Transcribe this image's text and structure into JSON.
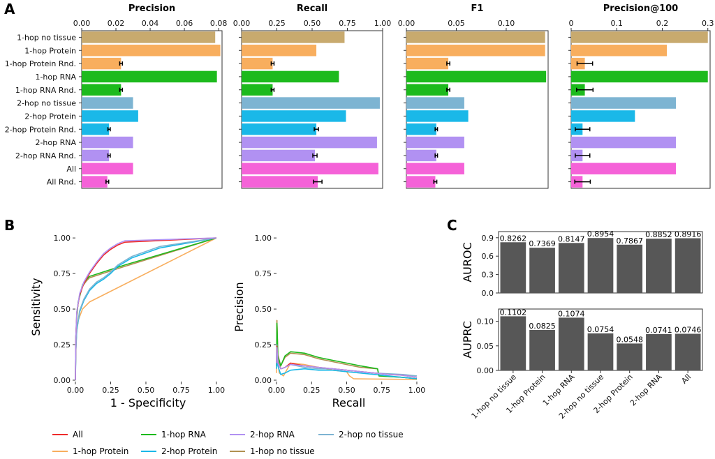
{
  "panel_labels": {
    "a": "A",
    "b": "B",
    "c": "C"
  },
  "colors": {
    "1-hop no tissue": "#C8AA6E",
    "1-hop Protein": "#F8AE5E",
    "1-hop Protein Rnd.": "#F8AE5E",
    "1-hop RNA": "#1DBA1D",
    "1-hop RNA Rnd.": "#1DBA1D",
    "2-hop no tissue": "#7DB4D2",
    "2-hop Protein": "#1AB8E8",
    "2-hop Protein Rnd.": "#1AB8E8",
    "2-hop RNA": "#B191F2",
    "2-hop RNA Rnd.": "#B191F2",
    "All": "#F562D8",
    "All Rnd.": "#F562D8",
    "grey_bar": "#575757"
  },
  "chart_data": [
    {
      "id": "A",
      "type": "bar",
      "orientation": "horizontal",
      "categories": [
        "1-hop no tissue",
        "1-hop Protein",
        "1-hop Protein Rnd.",
        "1-hop RNA",
        "1-hop RNA Rnd.",
        "2-hop no tissue",
        "2-hop Protein",
        "2-hop Protein Rnd.",
        "2-hop RNA",
        "2-hop RNA Rnd.",
        "All",
        "All Rnd."
      ],
      "facets": [
        {
          "title": "Precision",
          "xlim": [
            0,
            0.082
          ],
          "ticks": [
            0,
            0.02,
            0.04,
            0.06,
            0.08
          ],
          "tick_labels": [
            "0.00",
            "0.02",
            "0.04",
            "0.06",
            "0.08"
          ],
          "values": [
            0.078,
            0.081,
            0.023,
            0.079,
            0.023,
            0.03,
            0.033,
            0.016,
            0.03,
            0.016,
            0.03,
            0.015
          ],
          "errors": [
            0,
            0,
            0.0008,
            0,
            0.0008,
            0,
            0,
            0.0007,
            0,
            0.0007,
            0,
            0.0008
          ]
        },
        {
          "title": "Recall",
          "xlim": [
            0,
            1.0
          ],
          "ticks": [
            0,
            0.25,
            0.5,
            0.75,
            1.0
          ],
          "tick_labels": [
            "0.00",
            "0.25",
            "0.50",
            "0.75",
            "1.00"
          ],
          "values": [
            0.73,
            0.53,
            0.22,
            0.69,
            0.22,
            0.98,
            0.74,
            0.53,
            0.96,
            0.52,
            0.97,
            0.54
          ],
          "errors": [
            0,
            0,
            0.01,
            0,
            0.01,
            0,
            0,
            0.015,
            0,
            0.015,
            0,
            0.03
          ]
        },
        {
          "title": "F1",
          "xlim": [
            0,
            0.142
          ],
          "ticks": [
            0,
            0.05,
            0.1
          ],
          "tick_labels": [
            "0.00",
            "0.05",
            "0.10"
          ],
          "values": [
            0.139,
            0.139,
            0.042,
            0.14,
            0.042,
            0.058,
            0.062,
            0.03,
            0.058,
            0.03,
            0.058,
            0.029
          ],
          "errors": [
            0,
            0,
            0.0015,
            0,
            0.0015,
            0,
            0,
            0.0012,
            0,
            0.0012,
            0,
            0.0015
          ]
        },
        {
          "title": "Precision@100",
          "xlim": [
            0,
            0.305
          ],
          "ticks": [
            0,
            0.1,
            0.2,
            0.3
          ],
          "tick_labels": [
            "0",
            "0.1",
            "0.2",
            "0.3"
          ],
          "values": [
            0.3,
            0.21,
            0.03,
            0.3,
            0.03,
            0.23,
            0.14,
            0.025,
            0.23,
            0.025,
            0.23,
            0.025
          ],
          "errors": [
            0,
            0,
            0.017,
            0,
            0.018,
            0,
            0,
            0.016,
            0,
            0.016,
            0,
            0.017
          ]
        }
      ]
    },
    {
      "id": "B-roc",
      "type": "line",
      "title": "",
      "xlabel": "1 - Specificity",
      "ylabel": "Sensitivity",
      "xlim": [
        0,
        1.03
      ],
      "ylim": [
        0,
        1.03
      ],
      "ticks": [
        0,
        0.25,
        0.5,
        0.75,
        1.0
      ],
      "tick_labels": [
        "0.00",
        "0.25",
        "0.50",
        "0.75",
        "1.00"
      ],
      "series": [
        {
          "name": "1-hop Protein",
          "x": [
            0,
            0.003,
            0.01,
            0.02,
            0.05,
            0.1,
            1.0
          ],
          "y": [
            0,
            0.25,
            0.35,
            0.42,
            0.5,
            0.55,
            1.0
          ]
        },
        {
          "name": "1-hop no tissue",
          "x": [
            0,
            0.003,
            0.01,
            0.02,
            0.05,
            0.08,
            0.1,
            0.35,
            1.0
          ],
          "y": [
            0,
            0.3,
            0.45,
            0.55,
            0.66,
            0.7,
            0.72,
            0.8,
            1.0
          ]
        },
        {
          "name": "1-hop RNA",
          "x": [
            0,
            0.003,
            0.01,
            0.02,
            0.05,
            0.08,
            0.1,
            0.35,
            1.0
          ],
          "y": [
            0,
            0.3,
            0.45,
            0.55,
            0.67,
            0.71,
            0.73,
            0.81,
            1.0
          ]
        },
        {
          "name": "2-hop Protein",
          "x": [
            0,
            0.003,
            0.01,
            0.03,
            0.06,
            0.1,
            0.15,
            0.2,
            0.25,
            0.3,
            0.4,
            0.6,
            1.0
          ],
          "y": [
            0,
            0.2,
            0.35,
            0.48,
            0.56,
            0.63,
            0.68,
            0.71,
            0.75,
            0.8,
            0.86,
            0.93,
            1.0
          ]
        },
        {
          "name": "2-hop no tissue",
          "x": [
            0,
            0.003,
            0.01,
            0.03,
            0.06,
            0.1,
            0.15,
            0.2,
            0.25,
            0.3,
            0.4,
            0.6,
            1.0
          ],
          "y": [
            0,
            0.21,
            0.36,
            0.49,
            0.57,
            0.64,
            0.69,
            0.72,
            0.76,
            0.81,
            0.87,
            0.94,
            1.0
          ]
        },
        {
          "name": "All",
          "x": [
            0,
            0.003,
            0.01,
            0.03,
            0.06,
            0.1,
            0.15,
            0.2,
            0.25,
            0.3,
            0.35,
            1.0
          ],
          "y": [
            0,
            0.3,
            0.48,
            0.6,
            0.68,
            0.75,
            0.82,
            0.88,
            0.92,
            0.95,
            0.97,
            1.0
          ]
        },
        {
          "name": "2-hop RNA",
          "x": [
            0,
            0.003,
            0.01,
            0.03,
            0.06,
            0.1,
            0.15,
            0.2,
            0.25,
            0.3,
            0.35,
            1.0
          ],
          "y": [
            0,
            0.3,
            0.48,
            0.61,
            0.69,
            0.76,
            0.83,
            0.89,
            0.93,
            0.96,
            0.98,
            1.0
          ]
        }
      ]
    },
    {
      "id": "B-pr",
      "type": "line",
      "title": "",
      "xlabel": "Recall",
      "ylabel": "Precision",
      "xlim": [
        0,
        1.03
      ],
      "ylim": [
        0,
        1.03
      ],
      "ticks": [
        0,
        0.25,
        0.5,
        0.75,
        1.0
      ],
      "tick_labels": [
        "0.00",
        "0.25",
        "0.50",
        "0.75",
        "1.00"
      ],
      "series": [
        {
          "name": "1-hop Protein",
          "x": [
            0,
            0.003,
            0.01,
            0.02,
            0.05,
            0.1,
            0.2,
            0.3,
            0.4,
            0.5,
            0.52,
            0.55,
            1.0
          ],
          "y": [
            0.05,
            0.42,
            0.12,
            0.05,
            0.03,
            0.12,
            0.11,
            0.09,
            0.07,
            0.06,
            0.03,
            0.01,
            0.005
          ]
        },
        {
          "name": "1-hop no tissue",
          "x": [
            0,
            0.003,
            0.01,
            0.03,
            0.06,
            0.1,
            0.2,
            0.3,
            0.4,
            0.5,
            0.6,
            0.72,
            0.73,
            0.9,
            1.0
          ],
          "y": [
            0.1,
            0.42,
            0.18,
            0.1,
            0.16,
            0.19,
            0.18,
            0.15,
            0.13,
            0.11,
            0.09,
            0.08,
            0.03,
            0.02,
            0.01
          ]
        },
        {
          "name": "1-hop RNA",
          "x": [
            0,
            0.003,
            0.01,
            0.03,
            0.06,
            0.1,
            0.2,
            0.3,
            0.4,
            0.5,
            0.6,
            0.72,
            0.73,
            0.9,
            1.0
          ],
          "y": [
            0.1,
            0.4,
            0.17,
            0.1,
            0.17,
            0.2,
            0.19,
            0.16,
            0.14,
            0.12,
            0.1,
            0.08,
            0.03,
            0.02,
            0.01
          ]
        },
        {
          "name": "2-hop Protein",
          "x": [
            0,
            0.003,
            0.01,
            0.03,
            0.06,
            0.1,
            0.2,
            0.3,
            0.4,
            0.5,
            0.6,
            0.7,
            0.8,
            0.9,
            1.0
          ],
          "y": [
            0.08,
            0.2,
            0.1,
            0.04,
            0.05,
            0.07,
            0.08,
            0.07,
            0.07,
            0.06,
            0.05,
            0.04,
            0.03,
            0.02,
            0.01
          ]
        },
        {
          "name": "2-hop no tissue",
          "x": [
            0,
            0.003,
            0.01,
            0.03,
            0.06,
            0.1,
            0.15,
            0.2,
            0.3,
            0.4,
            0.5,
            0.6,
            0.7,
            0.8,
            0.9,
            1.0
          ],
          "y": [
            0.15,
            0.25,
            0.14,
            0.08,
            0.09,
            0.11,
            0.1,
            0.09,
            0.08,
            0.08,
            0.07,
            0.06,
            0.05,
            0.045,
            0.04,
            0.03
          ]
        },
        {
          "name": "All",
          "x": [
            0,
            0.003,
            0.01,
            0.03,
            0.06,
            0.1,
            0.15,
            0.2,
            0.3,
            0.4,
            0.5,
            0.6,
            0.7,
            0.8,
            0.9,
            1.0
          ],
          "y": [
            0.12,
            0.24,
            0.13,
            0.08,
            0.09,
            0.12,
            0.11,
            0.1,
            0.09,
            0.08,
            0.07,
            0.06,
            0.05,
            0.04,
            0.035,
            0.02
          ]
        },
        {
          "name": "2-hop RNA",
          "x": [
            0,
            0.003,
            0.01,
            0.03,
            0.06,
            0.1,
            0.15,
            0.2,
            0.3,
            0.4,
            0.5,
            0.6,
            0.7,
            0.8,
            0.9,
            1.0
          ],
          "y": [
            0.12,
            0.23,
            0.12,
            0.08,
            0.09,
            0.11,
            0.105,
            0.1,
            0.09,
            0.08,
            0.07,
            0.06,
            0.05,
            0.04,
            0.035,
            0.02
          ]
        }
      ]
    },
    {
      "id": "C-auroc",
      "type": "bar",
      "ylabel": "AUROC",
      "ylim": [
        0,
        1.0
      ],
      "ticks": [
        0,
        0.3,
        0.6,
        0.9
      ],
      "tick_labels": [
        "0.0",
        "0.3",
        "0.6",
        "0.9"
      ],
      "categories": [
        "1-hop no tissue",
        "1-hop Protein",
        "1-hop RNA",
        "2-hop no tissue",
        "2-hop Protein",
        "2-hop RNA",
        "All"
      ],
      "values": [
        0.8262,
        0.7369,
        0.8147,
        0.8954,
        0.7867,
        0.8852,
        0.8916
      ],
      "labels": [
        "0.8262",
        "0.7369",
        "0.8147",
        "0.8954",
        "0.7867",
        "0.8852",
        "0.8916"
      ]
    },
    {
      "id": "C-auprc",
      "type": "bar",
      "ylabel": "AUPRC",
      "ylim": [
        0,
        0.125
      ],
      "ticks": [
        0,
        0.05,
        0.1
      ],
      "tick_labels": [
        "0.00",
        "0.05",
        "0.10"
      ],
      "categories": [
        "1-hop no tissue",
        "1-hop Protein",
        "1-hop RNA",
        "2-hop no tissue",
        "2-hop Protein",
        "2-hop RNA",
        "All"
      ],
      "values": [
        0.1102,
        0.0825,
        0.1074,
        0.0754,
        0.0548,
        0.0741,
        0.0746
      ],
      "labels": [
        "0.1102",
        "0.0825",
        "0.1074",
        "0.0754",
        "0.0548",
        "0.0741",
        "0.0746"
      ]
    }
  ],
  "legend": {
    "items": [
      "All",
      "1-hop Protein",
      "1-hop RNA",
      "2-hop Protein",
      "2-hop RNA",
      "1-hop no tissue",
      "2-hop no tissue"
    ],
    "colors": {
      "All": "#EE2B2B",
      "1-hop Protein": "#F8AE5E",
      "1-hop RNA": "#1DBA1D",
      "2-hop Protein": "#1AB8E8",
      "2-hop RNA": "#B191F2",
      "1-hop no tissue": "#B09050",
      "2-hop no tissue": "#7DB4D2"
    }
  }
}
